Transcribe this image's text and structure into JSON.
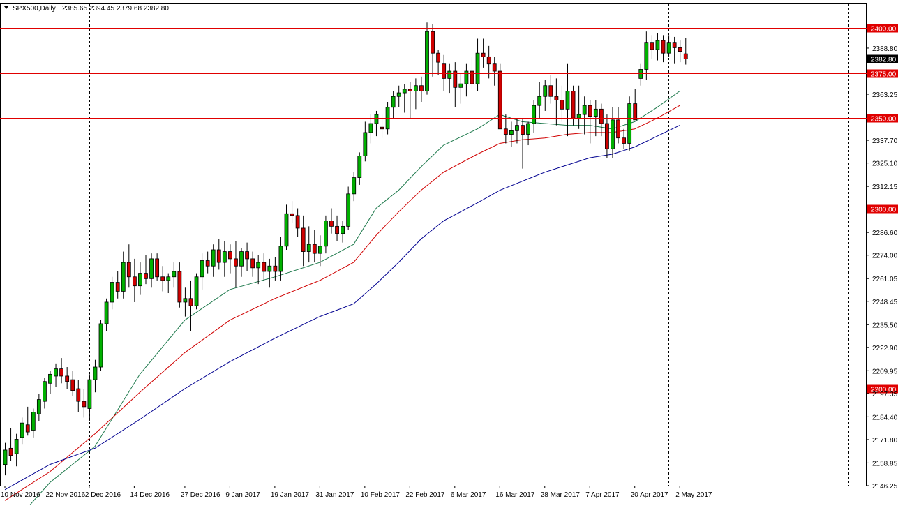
{
  "header": {
    "symbol": "SPX500,Daily",
    "ohlc": "2385.65 2394.45 2379.68 2382.80"
  },
  "colors": {
    "bull": "#00b000",
    "bear": "#d00000",
    "wick": "#000000",
    "level_line": "#e00000",
    "ma_fast": "#1f7a4d",
    "ma_mid": "#d00000",
    "ma_slow": "#000090",
    "grid": "#000000"
  },
  "chart_data": {
    "type": "candlestick",
    "title": "",
    "xlabel": "",
    "ylabel": "",
    "ylim": [
      2146.25,
      2407.0
    ],
    "grid": true,
    "y_ticks": [
      "2388.80",
      "2363.25",
      "2337.70",
      "2325.10",
      "2312.15",
      "2286.60",
      "2274.00",
      "2261.05",
      "2248.45",
      "2235.50",
      "2222.90",
      "2209.95",
      "2197.35",
      "2184.40",
      "2171.80",
      "2158.85",
      "2146.25"
    ],
    "x_ticks": [
      {
        "label": "10 Nov 2016",
        "index": 0
      },
      {
        "label": "22 Nov 2016",
        "index": 8
      },
      {
        "label": "2 Dec 2016",
        "index": 15
      },
      {
        "label": "14 Dec 2016",
        "index": 23
      },
      {
        "label": "27 Dec 2016",
        "index": 32
      },
      {
        "label": "9 Jan 2017",
        "index": 40
      },
      {
        "label": "19 Jan 2017",
        "index": 48
      },
      {
        "label": "31 Jan 2017",
        "index": 56
      },
      {
        "label": "10 Feb 2017",
        "index": 64
      },
      {
        "label": "22 Feb 2017",
        "index": 72
      },
      {
        "label": "6 Mar 2017",
        "index": 80
      },
      {
        "label": "16 Mar 2017",
        "index": 88
      },
      {
        "label": "28 Mar 2017",
        "index": 96
      },
      {
        "label": "7 Apr 2017",
        "index": 104
      },
      {
        "label": "20 Apr 2017",
        "index": 112
      },
      {
        "label": "2 May 2017",
        "index": 120
      }
    ],
    "vertical_grid_indices": [
      15,
      35,
      56,
      76,
      99,
      118,
      150
    ],
    "levels": [
      {
        "value": 2400.0,
        "label": "2400.00"
      },
      {
        "value": 2375.0,
        "label": "2375.00"
      },
      {
        "value": 2350.0,
        "label": "2350.00"
      },
      {
        "value": 2300.0,
        "label": "2300.00"
      },
      {
        "value": 2200.0,
        "label": "2200.00"
      }
    ],
    "current_price": {
      "value": 2382.8,
      "label": "2382.80"
    },
    "candles": [
      [
        2158,
        2170,
        2152,
        2166
      ],
      [
        2167,
        2178,
        2160,
        2163
      ],
      [
        2164,
        2175,
        2157,
        2172
      ],
      [
        2173,
        2184,
        2169,
        2181
      ],
      [
        2180,
        2190,
        2174,
        2176
      ],
      [
        2177,
        2189,
        2173,
        2187
      ],
      [
        2186,
        2197,
        2182,
        2194
      ],
      [
        2193,
        2206,
        2189,
        2204
      ],
      [
        2203,
        2210,
        2197,
        2208
      ],
      [
        2207,
        2214,
        2201,
        2211
      ],
      [
        2211,
        2217,
        2203,
        2207
      ],
      [
        2207,
        2212,
        2200,
        2204
      ],
      [
        2205,
        2210,
        2196,
        2199
      ],
      [
        2200,
        2205,
        2187,
        2193
      ],
      [
        2193,
        2200,
        2184,
        2190
      ],
      [
        2189,
        2208,
        2182,
        2205
      ],
      [
        2205,
        2216,
        2198,
        2212
      ],
      [
        2212,
        2238,
        2210,
        2236
      ],
      [
        2236,
        2250,
        2232,
        2248
      ],
      [
        2248,
        2262,
        2244,
        2259
      ],
      [
        2259,
        2265,
        2250,
        2254
      ],
      [
        2254,
        2276,
        2250,
        2270
      ],
      [
        2270,
        2280,
        2256,
        2262
      ],
      [
        2262,
        2272,
        2248,
        2257
      ],
      [
        2257,
        2270,
        2252,
        2264
      ],
      [
        2264,
        2274,
        2258,
        2261
      ],
      [
        2261,
        2275,
        2256,
        2272
      ],
      [
        2272,
        2275,
        2260,
        2262
      ],
      [
        2262,
        2268,
        2254,
        2260
      ],
      [
        2260,
        2264,
        2253,
        2262
      ],
      [
        2262,
        2270,
        2256,
        2265
      ],
      [
        2265,
        2270,
        2245,
        2248
      ],
      [
        2248,
        2256,
        2240,
        2250
      ],
      [
        2250,
        2260,
        2232,
        2246
      ],
      [
        2246,
        2264,
        2244,
        2262
      ],
      [
        2262,
        2275,
        2255,
        2271
      ],
      [
        2271,
        2276,
        2264,
        2268
      ],
      [
        2268,
        2280,
        2262,
        2277
      ],
      [
        2277,
        2283,
        2266,
        2270
      ],
      [
        2270,
        2282,
        2262,
        2276
      ],
      [
        2276,
        2280,
        2264,
        2272
      ],
      [
        2272,
        2282,
        2256,
        2268
      ],
      [
        2268,
        2278,
        2262,
        2276
      ],
      [
        2276,
        2281,
        2265,
        2272
      ],
      [
        2272,
        2276,
        2262,
        2267
      ],
      [
        2267,
        2274,
        2258,
        2270
      ],
      [
        2270,
        2275,
        2260,
        2265
      ],
      [
        2265,
        2272,
        2256,
        2268
      ],
      [
        2268,
        2273,
        2260,
        2265
      ],
      [
        2265,
        2284,
        2260,
        2279
      ],
      [
        2279,
        2302,
        2277,
        2297
      ],
      [
        2297,
        2304,
        2292,
        2296
      ],
      [
        2296,
        2300,
        2284,
        2289
      ],
      [
        2289,
        2296,
        2268,
        2276
      ],
      [
        2276,
        2290,
        2270,
        2280
      ],
      [
        2280,
        2288,
        2270,
        2275
      ],
      [
        2275,
        2285,
        2268,
        2279
      ],
      [
        2279,
        2296,
        2275,
        2293
      ],
      [
        2293,
        2300,
        2286,
        2290
      ],
      [
        2290,
        2296,
        2282,
        2286
      ],
      [
        2286,
        2293,
        2281,
        2290
      ],
      [
        2290,
        2312,
        2288,
        2308
      ],
      [
        2308,
        2320,
        2304,
        2317
      ],
      [
        2317,
        2331,
        2313,
        2329
      ],
      [
        2329,
        2348,
        2326,
        2342
      ],
      [
        2342,
        2352,
        2336,
        2347
      ],
      [
        2347,
        2354,
        2340,
        2352
      ],
      [
        2345,
        2352,
        2339,
        2344
      ],
      [
        2344,
        2359,
        2341,
        2356
      ],
      [
        2356,
        2365,
        2350,
        2362
      ],
      [
        2362,
        2368,
        2356,
        2364
      ],
      [
        2364,
        2369,
        2353,
        2366
      ],
      [
        2366,
        2370,
        2350,
        2365
      ],
      [
        2365,
        2372,
        2355,
        2368
      ],
      [
        2368,
        2373,
        2359,
        2365
      ],
      [
        2365,
        2403,
        2363,
        2398
      ],
      [
        2398,
        2402,
        2373,
        2386
      ],
      [
        2386,
        2388,
        2374,
        2381
      ],
      [
        2380,
        2385,
        2365,
        2372
      ],
      [
        2372,
        2380,
        2364,
        2376
      ],
      [
        2376,
        2381,
        2356,
        2367
      ],
      [
        2367,
        2375,
        2358,
        2369
      ],
      [
        2369,
        2380,
        2362,
        2376
      ],
      [
        2376,
        2384,
        2366,
        2369
      ],
      [
        2369,
        2394,
        2365,
        2386
      ],
      [
        2386,
        2394,
        2378,
        2384
      ],
      [
        2384,
        2390,
        2372,
        2380
      ],
      [
        2380,
        2384,
        2368,
        2376
      ],
      [
        2376,
        2380,
        2344,
        2344
      ],
      [
        2344,
        2352,
        2336,
        2341
      ],
      [
        2341,
        2348,
        2334,
        2343
      ],
      [
        2343,
        2350,
        2336,
        2346
      ],
      [
        2346,
        2350,
        2322,
        2341
      ],
      [
        2341,
        2348,
        2335,
        2347
      ],
      [
        2347,
        2360,
        2342,
        2357
      ],
      [
        2357,
        2370,
        2350,
        2362
      ],
      [
        2362,
        2371,
        2354,
        2368
      ],
      [
        2368,
        2374,
        2358,
        2362
      ],
      [
        2362,
        2372,
        2346,
        2360
      ],
      [
        2360,
        2368,
        2348,
        2355
      ],
      [
        2355,
        2380,
        2340,
        2365
      ],
      [
        2365,
        2368,
        2346,
        2350
      ],
      [
        2350,
        2368,
        2344,
        2352
      ],
      [
        2352,
        2362,
        2341,
        2357
      ],
      [
        2357,
        2360,
        2336,
        2351
      ],
      [
        2351,
        2360,
        2340,
        2355
      ],
      [
        2355,
        2358,
        2340,
        2347
      ],
      [
        2347,
        2352,
        2328,
        2333
      ],
      [
        2333,
        2356,
        2328,
        2349
      ],
      [
        2349,
        2356,
        2336,
        2339
      ],
      [
        2339,
        2344,
        2333,
        2336
      ],
      [
        2336,
        2362,
        2332,
        2358
      ],
      [
        2358,
        2366,
        2350,
        2349
      ],
      [
        2372,
        2380,
        2368,
        2377
      ],
      [
        2377,
        2398,
        2371,
        2392
      ],
      [
        2392,
        2396,
        2383,
        2388
      ],
      [
        2388,
        2397,
        2382,
        2393
      ],
      [
        2393,
        2396,
        2381,
        2386
      ],
      [
        2386,
        2396,
        2384,
        2392
      ],
      [
        2392,
        2395,
        2380,
        2389
      ],
      [
        2389,
        2393,
        2381,
        2387
      ],
      [
        2385.65,
        2394.45,
        2379.68,
        2382.8
      ]
    ],
    "series": [
      {
        "type": "line",
        "points": [
          [
            0,
            2120
          ],
          [
            8,
            2148
          ],
          [
            16,
            2168
          ],
          [
            24,
            2208
          ],
          [
            32,
            2238
          ],
          [
            40,
            2255
          ],
          [
            48,
            2262
          ],
          [
            56,
            2270
          ],
          [
            62,
            2280
          ],
          [
            66,
            2300
          ],
          [
            70,
            2310
          ],
          [
            74,
            2323
          ],
          [
            78,
            2335
          ],
          [
            84,
            2344
          ],
          [
            88,
            2352
          ],
          [
            92,
            2348
          ],
          [
            96,
            2347
          ],
          [
            100,
            2346
          ],
          [
            104,
            2346
          ],
          [
            108,
            2344
          ],
          [
            112,
            2348
          ],
          [
            116,
            2356
          ],
          [
            120,
            2365
          ]
        ]
      },
      {
        "type": "line",
        "points": [
          [
            0,
            2138
          ],
          [
            8,
            2154
          ],
          [
            16,
            2175
          ],
          [
            24,
            2198
          ],
          [
            32,
            2220
          ],
          [
            40,
            2238
          ],
          [
            48,
            2250
          ],
          [
            56,
            2260
          ],
          [
            62,
            2270
          ],
          [
            66,
            2285
          ],
          [
            70,
            2298
          ],
          [
            74,
            2310
          ],
          [
            78,
            2320
          ],
          [
            84,
            2330
          ],
          [
            88,
            2336
          ],
          [
            92,
            2338
          ],
          [
            96,
            2339
          ],
          [
            100,
            2341
          ],
          [
            104,
            2342
          ],
          [
            108,
            2342
          ],
          [
            112,
            2344
          ],
          [
            116,
            2350
          ],
          [
            120,
            2357
          ]
        ]
      },
      {
        "type": "line",
        "points": [
          [
            0,
            2144
          ],
          [
            8,
            2158
          ],
          [
            16,
            2167
          ],
          [
            24,
            2183
          ],
          [
            32,
            2200
          ],
          [
            40,
            2215
          ],
          [
            48,
            2228
          ],
          [
            56,
            2240
          ],
          [
            62,
            2247
          ],
          [
            66,
            2258
          ],
          [
            70,
            2270
          ],
          [
            74,
            2283
          ],
          [
            78,
            2293
          ],
          [
            84,
            2303
          ],
          [
            88,
            2310
          ],
          [
            92,
            2315
          ],
          [
            96,
            2320
          ],
          [
            100,
            2324
          ],
          [
            104,
            2328
          ],
          [
            108,
            2330
          ],
          [
            112,
            2334
          ],
          [
            116,
            2340
          ],
          [
            120,
            2346
          ]
        ]
      }
    ]
  }
}
